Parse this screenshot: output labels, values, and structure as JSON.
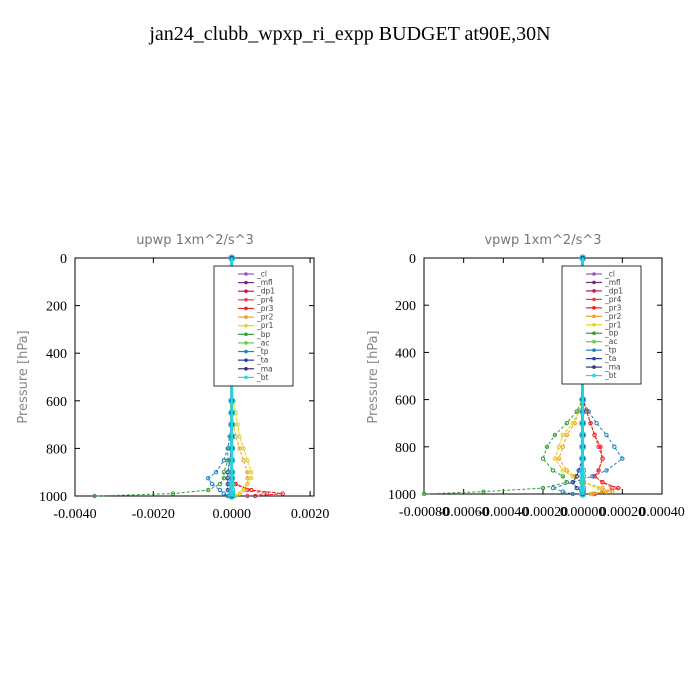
{
  "figure": {
    "suptitle": "jan24_clubb_wpxp_ri_expp  BUDGET at90E,30N"
  },
  "chart_data": [
    {
      "type": "line",
      "title": "upwp   1xm^2/s^3",
      "ylabel": "Pressure [hPa]",
      "xlim": [
        -0.004,
        0.0021
      ],
      "ylim": [
        1000,
        0
      ],
      "x_ticks": [
        "-0.0040",
        "-0.0020",
        "0.0000",
        "0.0020"
      ],
      "x_tick_values": [
        -0.004,
        -0.002,
        0.0,
        0.002
      ],
      "y_ticks": [
        "0",
        "200",
        "400",
        "600",
        "800",
        "1000"
      ],
      "y_tick_values": [
        0,
        200,
        400,
        600,
        800,
        1000
      ],
      "pressure": [
        0,
        100,
        200,
        300,
        400,
        500,
        600,
        650,
        700,
        750,
        800,
        850,
        900,
        925,
        950,
        975,
        990,
        1000
      ],
      "legend_position": "top-right",
      "series": [
        {
          "name": "_cl",
          "color": "#9b4fc9",
          "values": [
            0,
            0,
            0,
            0,
            0,
            0,
            0,
            0,
            0,
            0,
            0,
            0,
            0,
            0,
            0,
            0,
            0,
            0
          ]
        },
        {
          "name": "_mfl",
          "color": "#7a2a7a",
          "values": [
            0,
            0,
            0,
            0,
            0,
            0,
            0,
            0,
            0,
            0,
            0,
            0,
            0,
            0,
            0,
            0,
            0,
            0
          ]
        },
        {
          "name": "_dp1",
          "color": "#c0185a",
          "values": [
            0,
            0,
            0,
            0,
            0,
            0,
            0,
            0,
            0,
            0,
            0,
            0,
            0,
            0,
            0,
            0,
            0,
            0
          ]
        },
        {
          "name": "_pr4",
          "color": "#e8404a",
          "values": [
            0,
            0,
            0,
            0,
            0,
            0,
            0,
            0,
            0,
            0,
            0,
            0,
            0,
            0,
            0.0001,
            0.0004,
            0.0009,
            0.0004
          ]
        },
        {
          "name": "_pr3",
          "color": "#ee2020",
          "values": [
            0,
            0,
            0,
            0,
            0,
            0,
            0,
            0,
            0,
            0,
            0,
            0,
            0,
            0,
            0.0001,
            0.0005,
            0.0013,
            0.0006
          ]
        },
        {
          "name": "_pr2",
          "color": "#f0a020",
          "values": [
            0,
            0,
            0,
            0,
            0,
            0,
            0,
            0,
            5e-05,
            0.0001,
            0.0002,
            0.0003,
            0.0004,
            0.0004,
            0.0004,
            0.0003,
            0.0002,
            0.0001
          ]
        },
        {
          "name": "_pr1",
          "color": "#e8d020",
          "values": [
            0,
            0,
            0,
            0,
            0,
            0,
            5e-05,
            0.0001,
            0.00015,
            0.0002,
            0.0003,
            0.0004,
            0.0005,
            0.0005,
            0.0004,
            0.0003,
            0.0002,
            0.0001
          ]
        },
        {
          "name": "_bp",
          "color": "#30a030",
          "values": [
            0,
            0,
            0,
            0,
            0,
            0,
            0,
            0,
            0,
            -5e-05,
            -0.0001,
            -0.0001,
            -0.0002,
            -0.0002,
            -0.0003,
            -0.0006,
            -0.0015,
            -0.0035
          ]
        },
        {
          "name": "_ac",
          "color": "#60d040",
          "values": [
            0,
            0,
            0,
            0,
            0,
            0,
            0,
            0,
            0,
            0,
            0,
            0,
            0,
            0,
            0,
            0,
            0,
            0
          ]
        },
        {
          "name": "_tp",
          "color": "#2080c0",
          "values": [
            0,
            0,
            0,
            0,
            0,
            0,
            0,
            0,
            0,
            -5e-05,
            -0.0001,
            -0.0002,
            -0.0004,
            -0.0006,
            -0.0005,
            -0.0003,
            -0.0002,
            -0.0001
          ]
        },
        {
          "name": "_ta",
          "color": "#2040a0",
          "values": [
            0,
            0,
            0,
            0,
            0,
            0,
            0,
            0,
            0,
            0,
            0,
            -5e-05,
            -0.0001,
            -0.0001,
            -0.0001,
            -0.0001,
            0,
            0
          ]
        },
        {
          "name": "_ma",
          "color": "#303080",
          "values": [
            0,
            0,
            0,
            0,
            0,
            0,
            0,
            0,
            0,
            0,
            0,
            0,
            0,
            0,
            0,
            0,
            0,
            0
          ]
        },
        {
          "name": "_bt",
          "color": "#20d8e0",
          "values": [
            0,
            0,
            0,
            0,
            0,
            0,
            0,
            0,
            0,
            0,
            0,
            0,
            0,
            0,
            0,
            0,
            0,
            0
          ]
        }
      ]
    },
    {
      "type": "line",
      "title": "vpwp   1xm^2/s^3",
      "ylabel": "Pressure [hPa]",
      "xlim": [
        -0.0008,
        0.0004
      ],
      "ylim": [
        1000,
        0
      ],
      "x_ticks": [
        "-0.00080",
        "-0.00060",
        "-0.00040",
        "-0.00020",
        "0.00000",
        "0.00020",
        "0.00040"
      ],
      "x_tick_values": [
        -0.0008,
        -0.0006,
        -0.0004,
        -0.0002,
        0.0,
        0.0002,
        0.0004
      ],
      "y_ticks": [
        "0",
        "200",
        "400",
        "600",
        "800",
        "1000"
      ],
      "y_tick_values": [
        0,
        200,
        400,
        600,
        800,
        1000
      ],
      "pressure": [
        0,
        100,
        200,
        300,
        400,
        500,
        600,
        650,
        700,
        750,
        800,
        850,
        900,
        925,
        950,
        975,
        990,
        1000
      ],
      "legend_position": "top-right",
      "series": [
        {
          "name": "_cl",
          "color": "#9b4fc9",
          "values": [
            0,
            0,
            0,
            0,
            0,
            0,
            0,
            0,
            0,
            0,
            0,
            0,
            0,
            0,
            0,
            0,
            0,
            0
          ]
        },
        {
          "name": "_mfl",
          "color": "#7a2a7a",
          "values": [
            0,
            0,
            0,
            0,
            0,
            0,
            0,
            0,
            0,
            0,
            0,
            0,
            0,
            0,
            0,
            0,
            0,
            0
          ]
        },
        {
          "name": "_dp1",
          "color": "#c0185a",
          "values": [
            0,
            0,
            0,
            0,
            0,
            0,
            0,
            0,
            0,
            0,
            0,
            0,
            0,
            0,
            0,
            0,
            0,
            0
          ]
        },
        {
          "name": "_pr4",
          "color": "#e8404a",
          "values": [
            0,
            0,
            0,
            0,
            0,
            0,
            0,
            2e-05,
            4e-05,
            6e-05,
            8e-05,
            0.0001,
            8e-05,
            6e-05,
            0.0001,
            0.00015,
            0.0001,
            5e-05
          ]
        },
        {
          "name": "_pr3",
          "color": "#ee2020",
          "values": [
            0,
            0,
            0,
            0,
            0,
            0,
            0,
            2e-05,
            4e-05,
            6e-05,
            9e-05,
            0.0001,
            8e-05,
            6e-05,
            0.0001,
            0.00018,
            0.00012,
            6e-05
          ]
        },
        {
          "name": "_pr2",
          "color": "#f0a020",
          "values": [
            0,
            0,
            0,
            0,
            0,
            0,
            0,
            -2e-05,
            -4e-05,
            -8e-05,
            -0.0001,
            -0.00012,
            -8e-05,
            -4e-05,
            0,
            0.0001,
            0.00015,
            5e-05
          ]
        },
        {
          "name": "_pr1",
          "color": "#e8d020",
          "values": [
            0,
            0,
            0,
            0,
            0,
            0,
            0,
            -2e-05,
            -5e-05,
            -0.0001,
            -0.00012,
            -0.00014,
            -0.0001,
            -5e-05,
            0,
            8e-05,
            0.00012,
            4e-05
          ]
        },
        {
          "name": "_bp",
          "color": "#30a030",
          "values": [
            0,
            0,
            0,
            0,
            0,
            0,
            0,
            -3e-05,
            -8e-05,
            -0.00014,
            -0.00018,
            -0.0002,
            -0.00015,
            -0.0001,
            -8e-05,
            -0.0002,
            -0.0005,
            -0.0008
          ]
        },
        {
          "name": "_ac",
          "color": "#60d040",
          "values": [
            0,
            0,
            0,
            0,
            0,
            0,
            0,
            0,
            0,
            0,
            0,
            0,
            0,
            0,
            0,
            0,
            0,
            0
          ]
        },
        {
          "name": "_tp",
          "color": "#2080c0",
          "values": [
            0,
            0,
            0,
            0,
            0,
            0,
            0,
            3e-05,
            7e-05,
            0.00012,
            0.00016,
            0.0002,
            0.00012,
            5e-05,
            -5e-05,
            -0.00015,
            -0.0001,
            -5e-05
          ]
        },
        {
          "name": "_ta",
          "color": "#2040a0",
          "values": [
            0,
            0,
            0,
            0,
            0,
            0,
            0,
            0,
            0,
            0,
            0,
            0,
            -2e-05,
            -3e-05,
            -5e-05,
            -3e-05,
            0,
            0
          ]
        },
        {
          "name": "_ma",
          "color": "#303080",
          "values": [
            0,
            0,
            0,
            0,
            0,
            0,
            0,
            0,
            0,
            0,
            0,
            0,
            0,
            0,
            0,
            0,
            0,
            0
          ]
        },
        {
          "name": "_bt",
          "color": "#20d8e0",
          "values": [
            0,
            0,
            0,
            0,
            0,
            0,
            0,
            0,
            0,
            0,
            0,
            0,
            0,
            0,
            0,
            0,
            0,
            0
          ]
        }
      ]
    }
  ]
}
